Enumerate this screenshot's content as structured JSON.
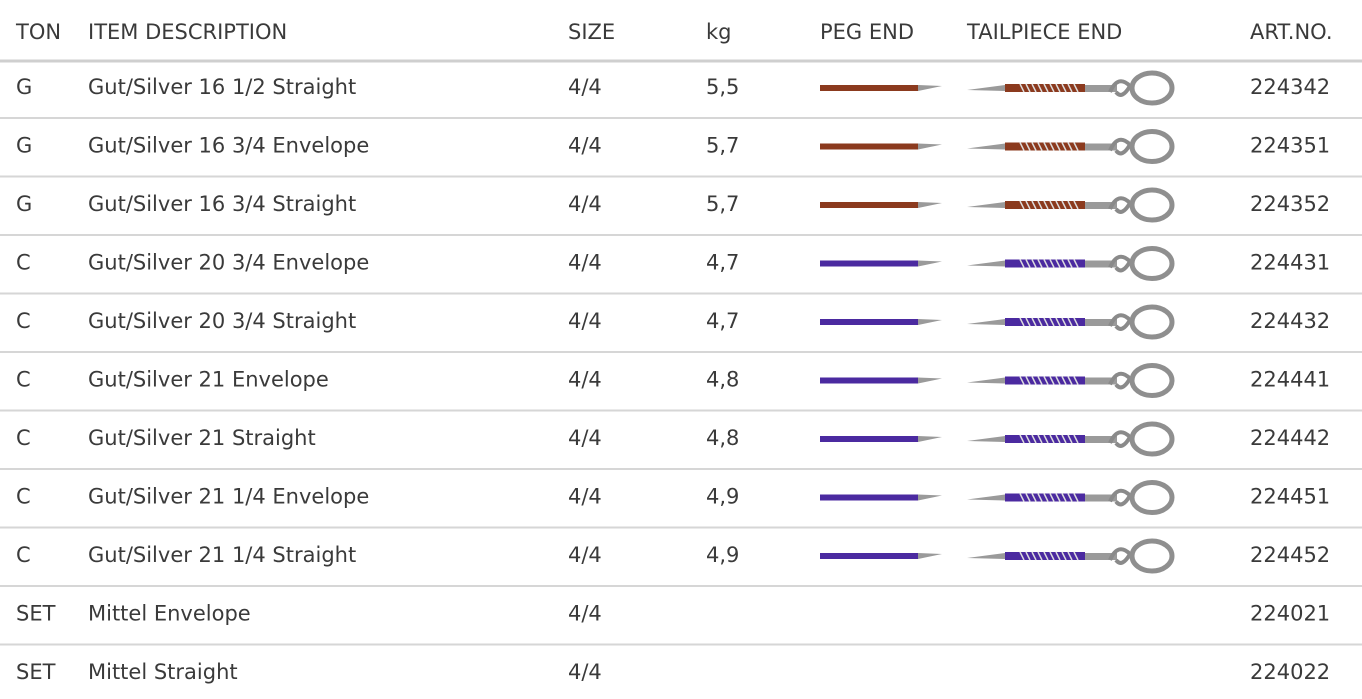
{
  "table": {
    "header": [
      "TON",
      "ITEM DESCRIPTION",
      "SIZE",
      "kg",
      "PEG END",
      "TAILPIECE END",
      "ART.NO."
    ],
    "rows": [
      {
        "ton": "G",
        "description": "Gut/Silver 16 1/2 Straight",
        "size": "4/4",
        "kg": "5,5",
        "peg_color": "#8b3a1e",
        "art_no": "224342"
      },
      {
        "ton": "G",
        "description": "Gut/Silver 16 3/4 Envelope",
        "size": "4/4",
        "kg": "5,7",
        "peg_color": "#8b3a1e",
        "art_no": "224351"
      },
      {
        "ton": "G",
        "description": "Gut/Silver 16 3/4 Straight",
        "size": "4/4",
        "kg": "5,7",
        "peg_color": "#8b3a1e",
        "art_no": "224352"
      },
      {
        "ton": "C",
        "description": "Gut/Silver 20 3/4 Envelope",
        "size": "4/4",
        "kg": "4,7",
        "peg_color": "#4b2aa0",
        "art_no": "224431"
      },
      {
        "ton": "C",
        "description": "Gut/Silver 20 3/4 Straight",
        "size": "4/4",
        "kg": "4,7",
        "peg_color": "#4b2aa0",
        "art_no": "224432"
      },
      {
        "ton": "C",
        "description": "Gut/Silver 21 Envelope",
        "size": "4/4",
        "kg": "4,8",
        "peg_color": "#4b2aa0",
        "art_no": "224441"
      },
      {
        "ton": "C",
        "description": "Gut/Silver 21 Straight",
        "size": "4/4",
        "kg": "4,8",
        "peg_color": "#4b2aa0",
        "art_no": "224442"
      },
      {
        "ton": "C",
        "description": "Gut/Silver 21 1/4 Envelope",
        "size": "4/4",
        "kg": "4,9",
        "peg_color": "#4b2aa0",
        "art_no": "224451"
      },
      {
        "ton": "C",
        "description": "Gut/Silver 21 1/4 Straight",
        "size": "4/4",
        "kg": "4,9",
        "peg_color": "#4b2aa0",
        "art_no": "224452"
      },
      {
        "ton": "SET",
        "description": "Mittel Envelope",
        "size": "4/4",
        "art_no": "224021"
      },
      {
        "ton": "SET",
        "description": "Mittel Straight",
        "size": "4/4",
        "art_no": "224022"
      }
    ]
  }
}
